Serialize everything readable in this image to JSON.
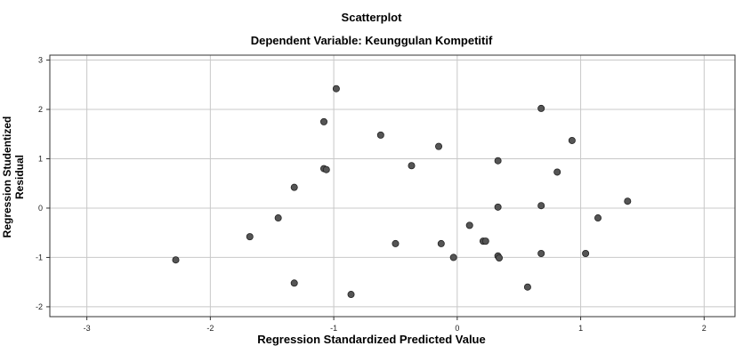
{
  "chart_data": {
    "type": "scatter",
    "title": "Scatterplot",
    "subtitle": "Dependent Variable: Keunggulan Kompetitif",
    "xlabel": "Regression Standardized Predicted Value",
    "ylabel": "Regression Studentized Residual",
    "xlim": [
      -3.3,
      2.25
    ],
    "ylim": [
      -2.2,
      3.1
    ],
    "xticks": [
      -3,
      -2,
      -1,
      0,
      1,
      2
    ],
    "yticks": [
      3,
      2,
      1,
      0,
      -1,
      -2
    ],
    "grid": true,
    "point_color": "#555555",
    "points": [
      {
        "x": -2.28,
        "y": -1.05
      },
      {
        "x": -1.68,
        "y": -0.58
      },
      {
        "x": -1.45,
        "y": -0.2
      },
      {
        "x": -1.32,
        "y": 0.42
      },
      {
        "x": -1.32,
        "y": -1.52
      },
      {
        "x": -1.08,
        "y": 1.75
      },
      {
        "x": -1.08,
        "y": 0.8
      },
      {
        "x": -1.06,
        "y": 0.78
      },
      {
        "x": -0.98,
        "y": 2.42
      },
      {
        "x": -0.86,
        "y": -1.75
      },
      {
        "x": -0.62,
        "y": 1.48
      },
      {
        "x": -0.5,
        "y": -0.72
      },
      {
        "x": -0.37,
        "y": 0.86
      },
      {
        "x": -0.15,
        "y": 1.25
      },
      {
        "x": -0.13,
        "y": -0.72
      },
      {
        "x": -0.03,
        "y": -1.0
      },
      {
        "x": 0.1,
        "y": -0.35
      },
      {
        "x": 0.21,
        "y": -0.67
      },
      {
        "x": 0.23,
        "y": -0.67
      },
      {
        "x": 0.33,
        "y": 0.96
      },
      {
        "x": 0.33,
        "y": 0.02
      },
      {
        "x": 0.33,
        "y": -0.97
      },
      {
        "x": 0.34,
        "y": -1.01
      },
      {
        "x": 0.57,
        "y": -1.6
      },
      {
        "x": 0.68,
        "y": 2.02
      },
      {
        "x": 0.68,
        "y": 0.05
      },
      {
        "x": 0.68,
        "y": -0.92
      },
      {
        "x": 0.81,
        "y": 0.73
      },
      {
        "x": 0.93,
        "y": 1.37
      },
      {
        "x": 1.04,
        "y": -0.92
      },
      {
        "x": 1.14,
        "y": -0.2
      },
      {
        "x": 1.38,
        "y": 0.14
      }
    ]
  }
}
